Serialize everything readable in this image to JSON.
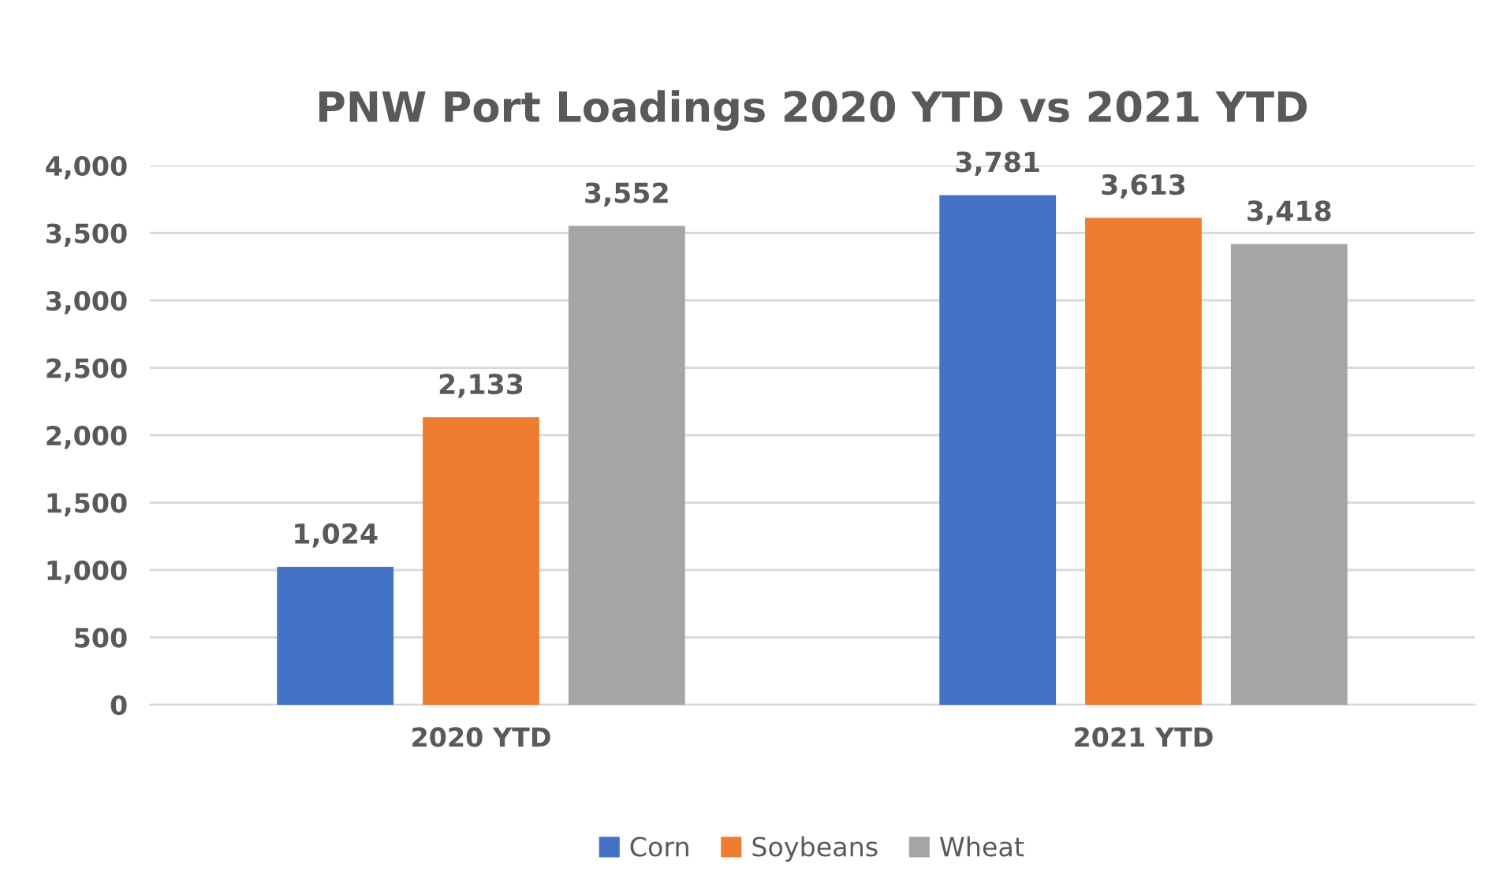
{
  "chart_data": {
    "type": "bar",
    "title": "PNW Port Loadings 2020 YTD vs 2021 YTD",
    "categories": [
      "2020 YTD",
      "2021 YTD"
    ],
    "series": [
      {
        "name": "Corn",
        "color": "#4472c4",
        "values": [
          1024,
          3781
        ],
        "value_labels": [
          "1,024",
          "3,781"
        ]
      },
      {
        "name": "Soybeans",
        "color": "#ed7d31",
        "values": [
          2133,
          3613
        ],
        "value_labels": [
          "2,133",
          "3,613"
        ]
      },
      {
        "name": "Wheat",
        "color": "#a5a5a5",
        "values": [
          3552,
          3418
        ],
        "value_labels": [
          "3,552",
          "3,418"
        ]
      }
    ],
    "ylim": [
      0,
      4000
    ],
    "yticks": [
      0,
      500,
      {
        "value": 1000,
        "label": "1,000"
      },
      {
        "value": 1500,
        "label": "1,500"
      },
      {
        "value": 2000,
        "label": "2,000"
      },
      {
        "value": 2500,
        "label": "2,500"
      },
      {
        "value": 3000,
        "label": "3,000"
      },
      {
        "value": 3500,
        "label": "3,500"
      },
      {
        "value": 4000,
        "label": "4,000"
      }
    ],
    "grid": "y",
    "legend": "bottom"
  }
}
